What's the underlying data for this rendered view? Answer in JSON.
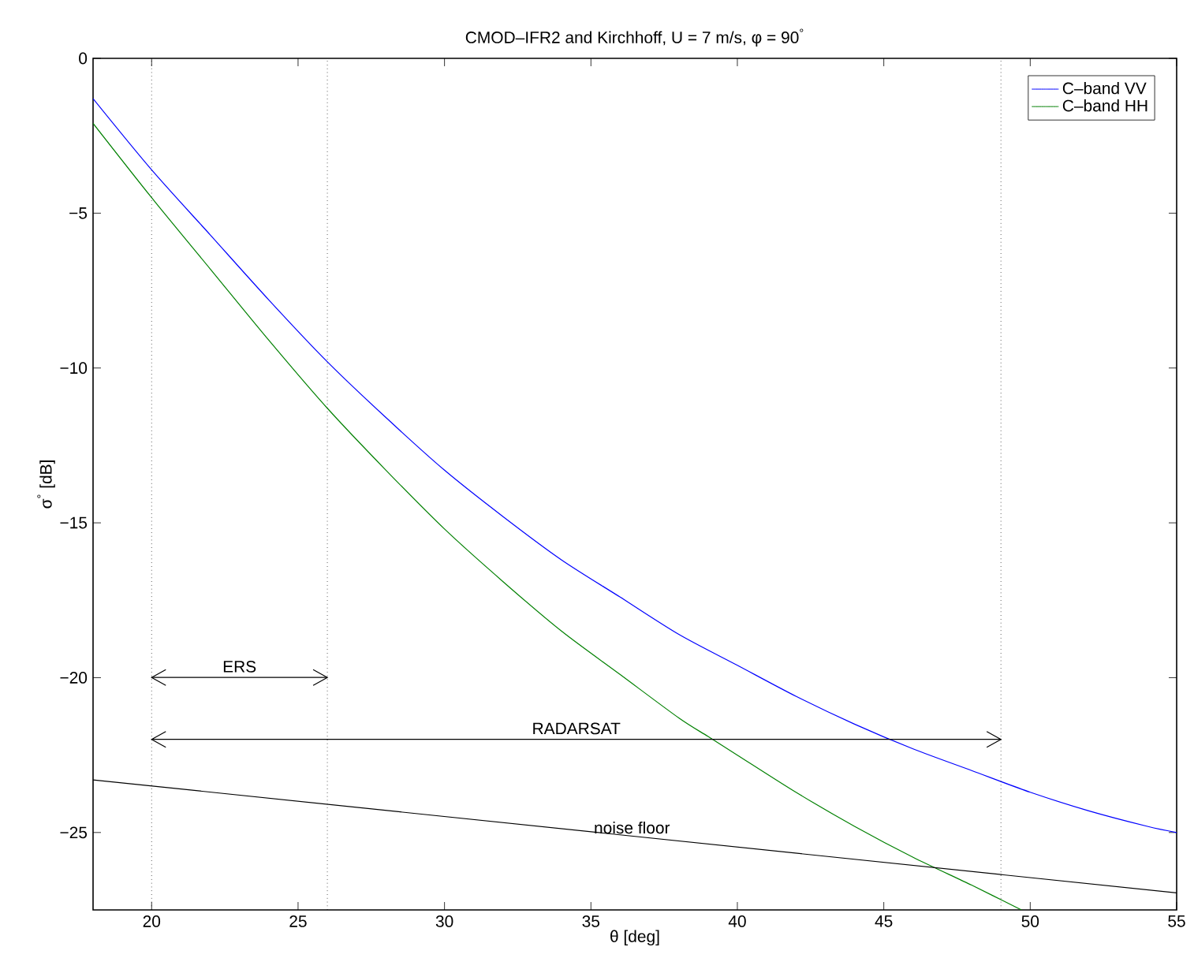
{
  "chart_data": {
    "type": "line",
    "title": "CMOD–IFR2 and Kirchhoff, U = 7 m/s, φ = 90$^{°}$",
    "xlabel": "θ [deg]",
    "ylabel": "σ$^{°}$ [dB]",
    "xlim": [
      18,
      55
    ],
    "ylim": [
      -27.5,
      0
    ],
    "xticks": [
      20,
      25,
      30,
      35,
      40,
      45,
      50,
      55
    ],
    "yticks": [
      {
        "value": 0,
        "label": "0"
      },
      {
        "value": -5,
        "label": "−5"
      },
      {
        "value": -10,
        "label": "−10"
      },
      {
        "value": -15,
        "label": "−15"
      },
      {
        "value": -20,
        "label": "−20"
      },
      {
        "value": -25,
        "label": "−25"
      }
    ],
    "grid": false,
    "legend": "top right",
    "line_style": "solid",
    "marker": "none",
    "series": [
      {
        "name": "C–band VV",
        "color": "#0000ff",
        "x": [
          18,
          20,
          22,
          24,
          26,
          28,
          30,
          32,
          34,
          36,
          38,
          40,
          42,
          44,
          46,
          48,
          50,
          52,
          54,
          55
        ],
        "values": [
          -1.3,
          -3.6,
          -5.7,
          -7.8,
          -9.8,
          -11.6,
          -13.3,
          -14.8,
          -16.2,
          -17.4,
          -18.6,
          -19.6,
          -20.6,
          -21.5,
          -22.3,
          -23.0,
          -23.7,
          -24.3,
          -24.8,
          -25.0
        ]
      },
      {
        "name": "C–band HH",
        "color": "#008000",
        "x": [
          18,
          20,
          22,
          24,
          26,
          28,
          30,
          32,
          34,
          36,
          38,
          39,
          40,
          42,
          44,
          46,
          48,
          49.7
        ],
        "values": [
          -2.1,
          -4.5,
          -6.8,
          -9.1,
          -11.3,
          -13.3,
          -15.2,
          -16.9,
          -18.5,
          -19.9,
          -21.3,
          -21.9,
          -22.5,
          -23.7,
          -24.8,
          -25.8,
          -26.7,
          -27.5
        ]
      },
      {
        "color": "#000000",
        "x": [
          18,
          55
        ],
        "values": [
          -23.3,
          -26.95
        ]
      }
    ],
    "ref_lines": [
      {
        "axis": "x",
        "value": 20,
        "color": "#000000",
        "line_style": "dotted"
      },
      {
        "axis": "x",
        "value": 26,
        "color": "#000000",
        "line_style": "dotted"
      },
      {
        "axis": "x",
        "value": 49,
        "color": "#000000",
        "line_style": "dotted"
      }
    ],
    "annotations": [
      "ERS",
      "RADARSAT",
      {
        "text": "noise floor",
        "x": 36.4,
        "y": -25.2
      }
    ]
  }
}
